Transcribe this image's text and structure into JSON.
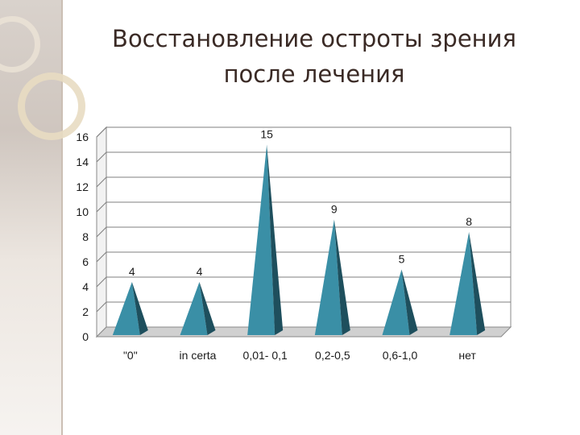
{
  "title_line1": "Восстановление остроты зрения",
  "title_line2": "после лечения",
  "colors": {
    "cone_front": "#3a8fa6",
    "cone_side": "#1e4f5d",
    "wall": "#ffffff",
    "grid": "#7f7f7f"
  },
  "chart_data": {
    "type": "bar",
    "bar_shape": "cone-3d",
    "categories": [
      "\"0\"",
      "in certa",
      "0,01- 0,1",
      "0,2-0,5",
      "0,6-1,0",
      "нет"
    ],
    "values": [
      4,
      4,
      15,
      9,
      5,
      8
    ],
    "data_labels": [
      "4",
      "4",
      "15",
      "9",
      "5",
      "8"
    ],
    "y_ticks": [
      "0",
      "2",
      "4",
      "6",
      "8",
      "10",
      "12",
      "14",
      "16"
    ],
    "ylim": [
      0,
      16
    ],
    "grid": true,
    "legend": "none"
  }
}
